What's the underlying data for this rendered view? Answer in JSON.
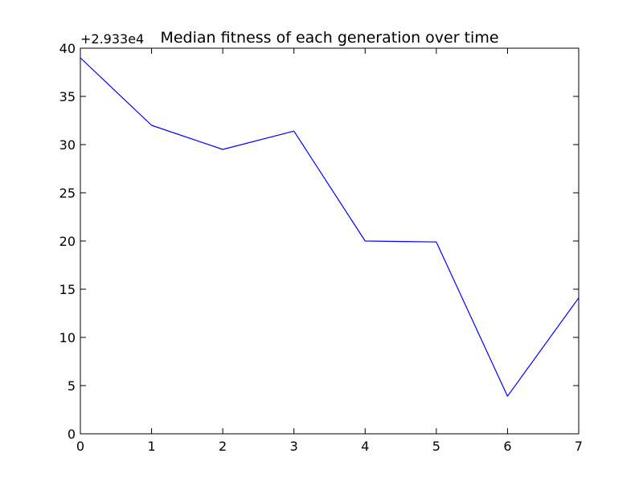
{
  "chart_data": {
    "type": "line",
    "title": "Median fitness of each generation over time",
    "xlabel": "",
    "ylabel": "",
    "y_offset_label": "+2.933e4",
    "xlim": [
      0,
      7
    ],
    "ylim": [
      0,
      40
    ],
    "x_ticks": [
      "0",
      "1",
      "2",
      "3",
      "4",
      "5",
      "6",
      "7"
    ],
    "y_ticks": [
      "0",
      "5",
      "10",
      "15",
      "20",
      "25",
      "30",
      "35",
      "40"
    ],
    "grid": false,
    "series": [
      {
        "color": "#0000ff",
        "x": [
          0,
          1,
          2,
          3,
          4,
          5,
          6,
          7
        ],
        "y": [
          39.0,
          32.0,
          29.5,
          31.4,
          20.0,
          19.9,
          3.9,
          14.1
        ]
      }
    ]
  }
}
